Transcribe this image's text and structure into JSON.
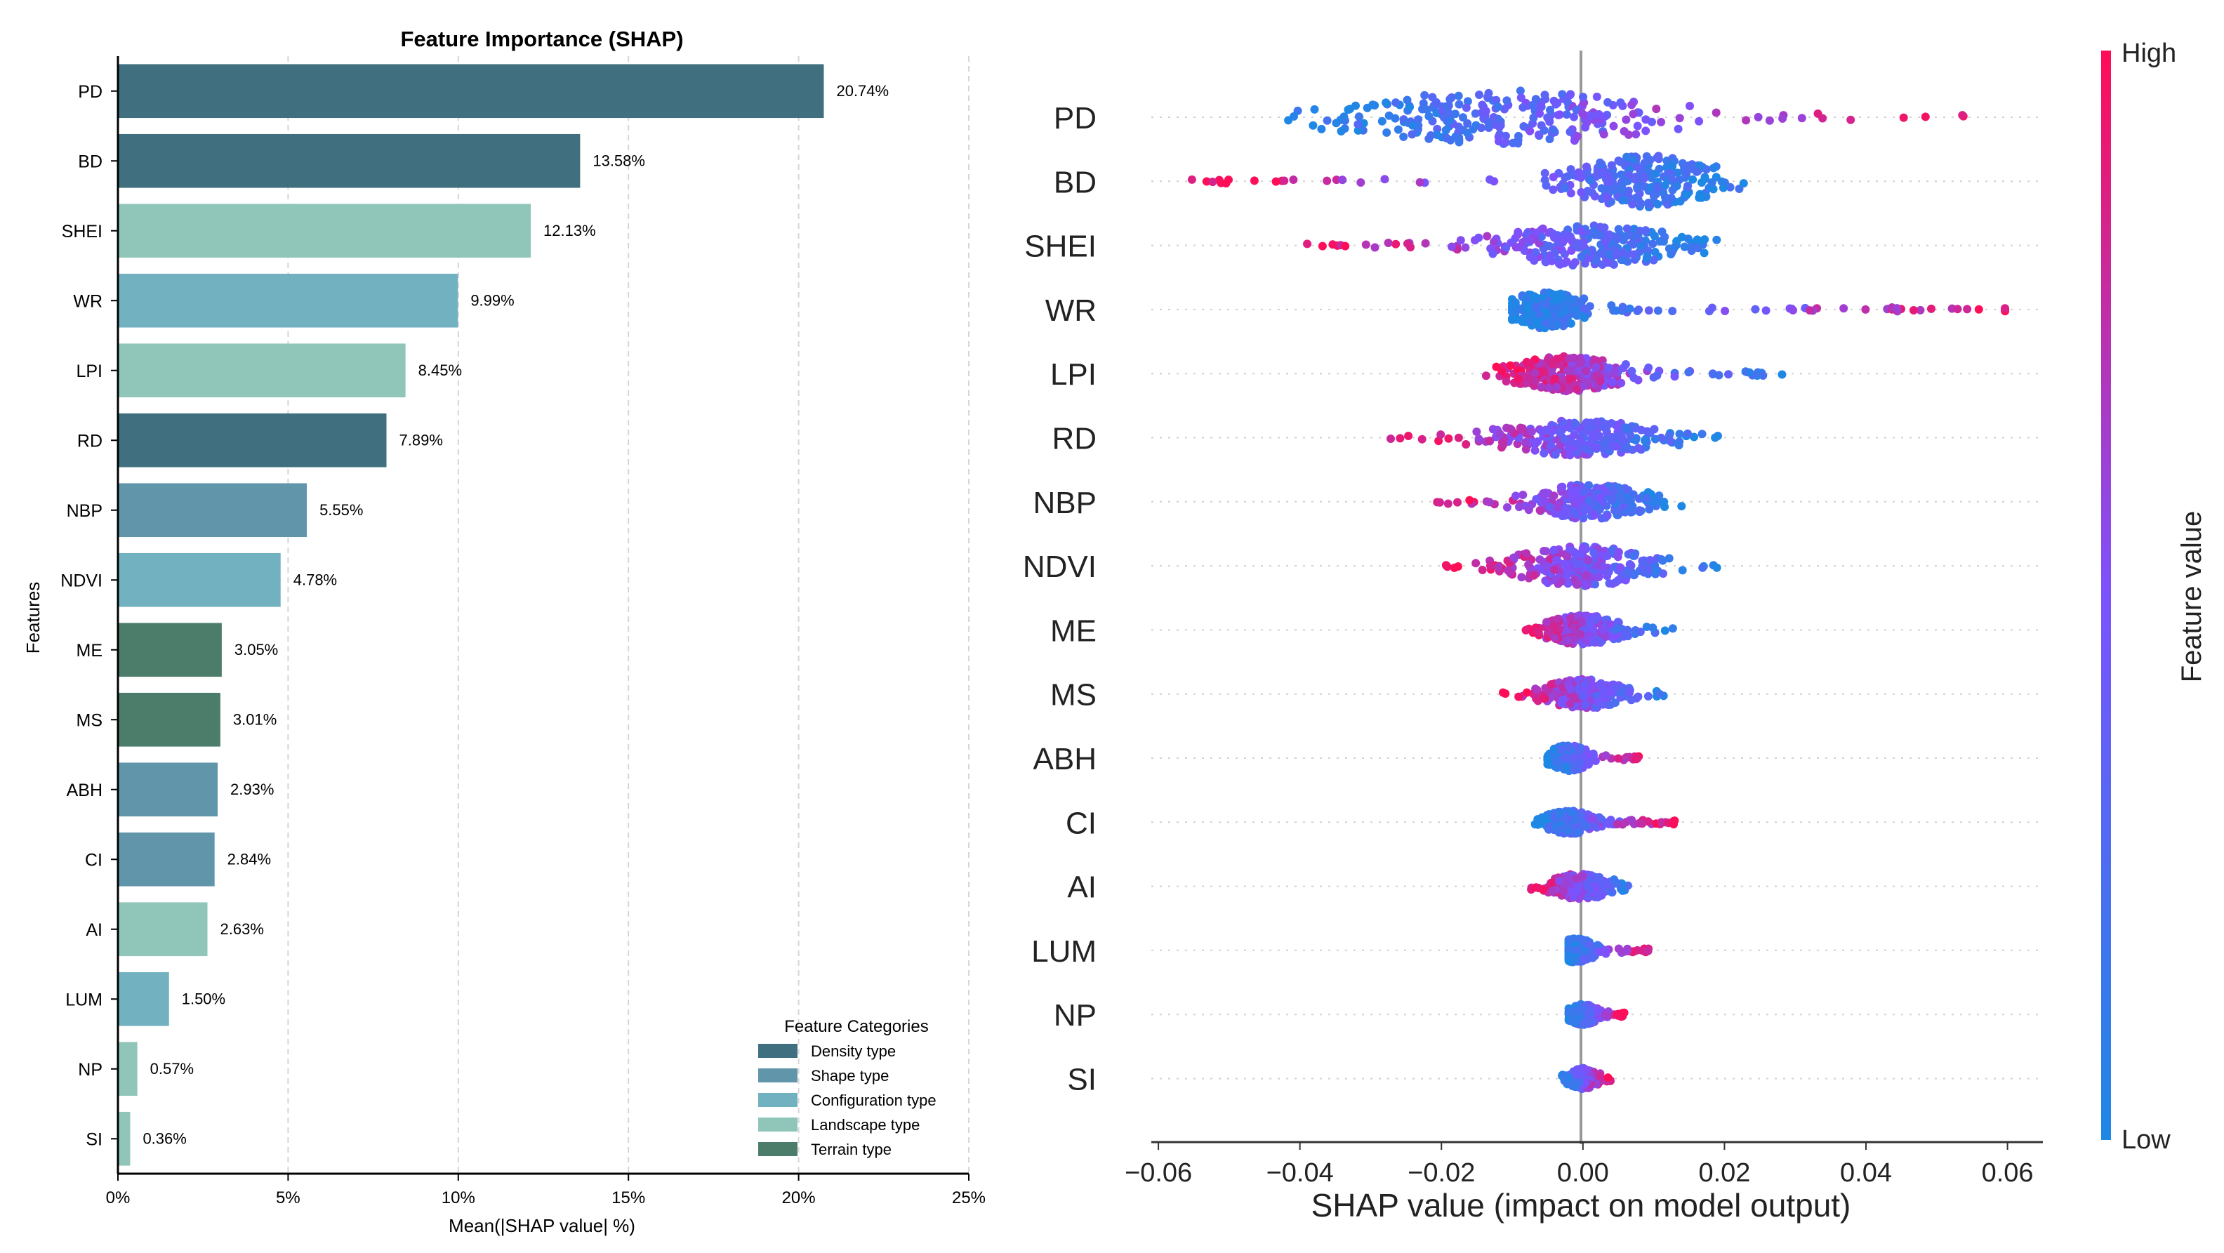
{
  "chart_data": [
    {
      "type": "bar",
      "orientation": "horizontal",
      "title": "Feature Importance (SHAP)",
      "xlabel": "Mean(|SHAP value| %)",
      "ylabel": "Features",
      "xlim": [
        0,
        25
      ],
      "xticks": [
        "0%",
        "5%",
        "10%",
        "15%",
        "20%",
        "25%"
      ],
      "grid": "vertical dashed",
      "categories": [
        "PD",
        "BD",
        "SHEI",
        "WR",
        "LPI",
        "RD",
        "NBP",
        "NDVI",
        "ME",
        "MS",
        "ABH",
        "CI",
        "AI",
        "LUM",
        "NP",
        "SI"
      ],
      "values": [
        20.74,
        13.58,
        12.13,
        9.99,
        8.45,
        7.89,
        5.55,
        4.78,
        3.05,
        3.01,
        2.93,
        2.84,
        2.63,
        1.5,
        0.57,
        0.36
      ],
      "value_labels": [
        "20.74%",
        "13.58%",
        "12.13%",
        "9.99%",
        "8.45%",
        "7.89%",
        "5.55%",
        "4.78%",
        "3.05%",
        "3.01%",
        "2.93%",
        "2.84%",
        "2.63%",
        "1.50%",
        "0.57%",
        "0.36%"
      ],
      "bar_category": [
        "Density type",
        "Density type",
        "Landscape type",
        "Configuration type",
        "Landscape type",
        "Density type",
        "Shape type",
        "Configuration type",
        "Terrain type",
        "Terrain type",
        "Shape type",
        "Shape type",
        "Landscape type",
        "Configuration type",
        "Landscape type",
        "Landscape type"
      ],
      "legend": {
        "title": "Feature Categories",
        "placement": "bottom-right",
        "entries": [
          "Density type",
          "Shape type",
          "Configuration type",
          "Landscape type",
          "Terrain type"
        ],
        "colors": [
          "#40707f",
          "#6095aa",
          "#72b1bf",
          "#90c5b9",
          "#4b7d6a"
        ]
      }
    },
    {
      "type": "scatter",
      "subtype": "beeswarm",
      "xlabel": "SHAP value (impact on model output)",
      "xlim": [
        -0.061,
        0.065
      ],
      "xticks": [
        "−0.06",
        "−0.04",
        "−0.02",
        "0.00",
        "0.02",
        "0.04",
        "0.06"
      ],
      "features": [
        "PD",
        "BD",
        "SHEI",
        "WR",
        "LPI",
        "RD",
        "NBP",
        "NDVI",
        "ME",
        "MS",
        "ABH",
        "CI",
        "AI",
        "LUM",
        "NP",
        "SI"
      ],
      "approx_ranges": [
        [
          -0.042,
          0.055
        ],
        [
          -0.056,
          0.025
        ],
        [
          -0.039,
          0.02
        ],
        [
          -0.01,
          0.06
        ],
        [
          -0.014,
          0.03
        ],
        [
          -0.028,
          0.02
        ],
        [
          -0.021,
          0.014
        ],
        [
          -0.02,
          0.02
        ],
        [
          -0.01,
          0.013
        ],
        [
          -0.012,
          0.013
        ],
        [
          -0.005,
          0.008
        ],
        [
          -0.007,
          0.014
        ],
        [
          -0.008,
          0.008
        ],
        [
          -0.002,
          0.01
        ],
        [
          -0.002,
          0.006
        ],
        [
          -0.003,
          0.004
        ]
      ],
      "colorbar": {
        "label": "Feature value",
        "high_label": "High",
        "low_label": "Low",
        "high_color": "#ff0d57",
        "low_color": "#1e88e5"
      }
    }
  ]
}
